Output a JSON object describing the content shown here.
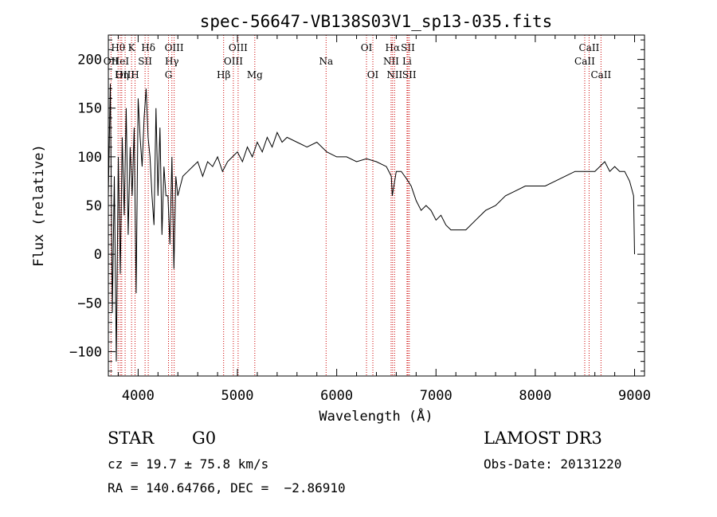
{
  "chart_data": {
    "type": "line",
    "title": "spec-56647-VB138S03V1_sp13-035.fits",
    "xlabel": "Wavelength (Å)",
    "ylabel": "Flux (relative)",
    "xlim": [
      3700,
      9100
    ],
    "ylim": [
      -125,
      225
    ],
    "xticks": [
      4000,
      5000,
      6000,
      7000,
      8000,
      9000
    ],
    "xtick_labels": [
      "4000",
      "5000",
      "6000",
      "7000",
      "8000",
      "9000"
    ],
    "yticks": [
      -100,
      -50,
      0,
      50,
      100,
      150,
      200
    ],
    "ytick_labels": [
      "−100",
      "−50",
      "0",
      "50",
      "100",
      "150",
      "200"
    ],
    "grid": false,
    "series": [
      {
        "x": [
          3700,
          3720,
          3740,
          3760,
          3780,
          3800,
          3820,
          3840,
          3860,
          3880,
          3900,
          3920,
          3940,
          3960,
          3980,
          4000,
          4020,
          4040,
          4060,
          4080,
          4100,
          4120,
          4140,
          4160,
          4180,
          4200,
          4220,
          4240,
          4260,
          4280,
          4300,
          4320,
          4340,
          4360,
          4380,
          4400,
          4450,
          4500,
          4550,
          4600,
          4650,
          4700,
          4750,
          4800,
          4850,
          4900,
          4950,
          5000,
          5050,
          5100,
          5150,
          5200,
          5250,
          5300,
          5350,
          5400,
          5450,
          5500,
          5600,
          5700,
          5800,
          5900,
          6000,
          6100,
          6200,
          6300,
          6400,
          6500,
          6550,
          6560,
          6600,
          6650,
          6700,
          6750,
          6800,
          6850,
          6900,
          6950,
          7000,
          7050,
          7100,
          7150,
          7200,
          7300,
          7400,
          7500,
          7600,
          7700,
          7800,
          7900,
          8000,
          8100,
          8200,
          8300,
          8400,
          8500,
          8600,
          8650,
          8700,
          8750,
          8800,
          8850,
          8900,
          8950,
          8990,
          9000
        ],
        "y": [
          60,
          175,
          -60,
          80,
          -110,
          100,
          -20,
          120,
          40,
          150,
          20,
          110,
          60,
          130,
          -40,
          160,
          120,
          90,
          140,
          170,
          120,
          100,
          60,
          30,
          150,
          60,
          130,
          20,
          90,
          60,
          60,
          10,
          100,
          -15,
          80,
          60,
          80,
          85,
          90,
          95,
          80,
          95,
          90,
          100,
          85,
          95,
          100,
          105,
          95,
          110,
          100,
          115,
          105,
          120,
          110,
          125,
          115,
          120,
          115,
          110,
          115,
          105,
          100,
          100,
          95,
          98,
          95,
          90,
          80,
          60,
          85,
          85,
          78,
          70,
          55,
          45,
          50,
          45,
          35,
          40,
          30,
          25,
          25,
          25,
          35,
          45,
          50,
          60,
          65,
          70,
          70,
          70,
          75,
          80,
          85,
          85,
          85,
          90,
          95,
          85,
          90,
          85,
          85,
          75,
          60,
          0
        ]
      }
    ],
    "spectral_lines": [
      {
        "name": "Hθ",
        "x": 3798,
        "row": 1
      },
      {
        "name": "OII",
        "x": 3727,
        "row": 2
      },
      {
        "name": "OIII",
        "x": 3869,
        "row": 3
      },
      {
        "name": "HeI",
        "x": 3820,
        "row": 2
      },
      {
        "name": "Hη",
        "x": 3835,
        "row": 3
      },
      {
        "name": "K",
        "x": 3934,
        "row": 1
      },
      {
        "name": "SII",
        "x": 4070,
        "row": 2
      },
      {
        "name": "H",
        "x": 3969,
        "row": 3
      },
      {
        "name": "Hδ",
        "x": 4102,
        "row": 1
      },
      {
        "name": "OIII",
        "x": 4363,
        "row": 1
      },
      {
        "name": "Hγ",
        "x": 4340,
        "row": 2
      },
      {
        "name": "G",
        "x": 4306,
        "row": 3
      },
      {
        "name": "OIII",
        "x": 5007,
        "row": 1
      },
      {
        "name": "OIII",
        "x": 4959,
        "row": 2
      },
      {
        "name": "Hβ",
        "x": 4861,
        "row": 3
      },
      {
        "name": "Mg",
        "x": 5175,
        "row": 3
      },
      {
        "name": "Na",
        "x": 5893,
        "row": 2
      },
      {
        "name": "OI",
        "x": 6300,
        "row": 1
      },
      {
        "name": "OI",
        "x": 6364,
        "row": 3
      },
      {
        "name": "Hα",
        "x": 6563,
        "row": 1
      },
      {
        "name": "SII",
        "x": 6717,
        "row": 1
      },
      {
        "name": "NII",
        "x": 6548,
        "row": 2
      },
      {
        "name": "Li",
        "x": 6708,
        "row": 2
      },
      {
        "name": "NII",
        "x": 6583,
        "row": 3
      },
      {
        "name": "SII",
        "x": 6731,
        "row": 3
      },
      {
        "name": "CaII",
        "x": 8542,
        "row": 1
      },
      {
        "name": "CaII",
        "x": 8498,
        "row": 2
      },
      {
        "name": "CaII",
        "x": 8662,
        "row": 3
      }
    ]
  },
  "info": {
    "object_class": "STAR",
    "subclass": "G0",
    "survey": "LAMOST DR3",
    "redshift_text": "cz = 19.7 ± 75.8 km/s",
    "obs_date": "Obs-Date: 20131220",
    "coords": "RA = 140.64766, DEC =  −2.86910"
  }
}
